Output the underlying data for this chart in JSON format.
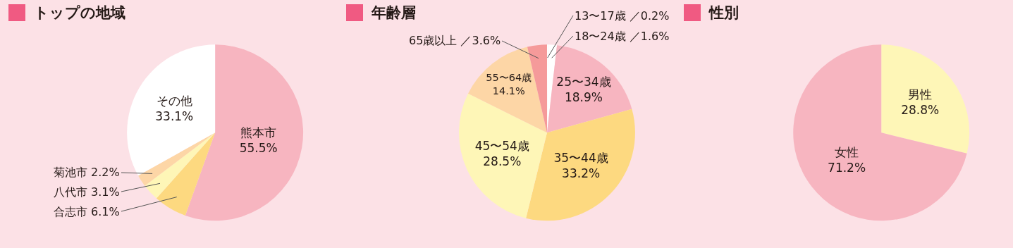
{
  "chart_data": [
    {
      "type": "pie",
      "title": "トップの地域",
      "categories": [
        "熊本市",
        "合志市",
        "八代市",
        "菊池市",
        "その他"
      ],
      "values": [
        55.5,
        6.1,
        3.1,
        2.2,
        33.1
      ],
      "value_labels": [
        "55.5%",
        "6.1%",
        "3.1%",
        "2.2%",
        "33.1%"
      ],
      "colors": [
        "#f7b5c0",
        "#fdd980",
        "#fef6b7",
        "#fdd6a6",
        "#ffffff"
      ],
      "legend": false
    },
    {
      "type": "pie",
      "title": "年齢層",
      "categories": [
        "13〜17歳",
        "18〜24歳",
        "25〜34歳",
        "35〜44歳",
        "45〜54歳",
        "55〜64歳",
        "65歳以上"
      ],
      "values": [
        0.2,
        1.6,
        18.9,
        33.2,
        28.5,
        14.1,
        3.6
      ],
      "value_labels": [
        "／0.2%",
        "／1.6%",
        "18.9%",
        "33.2%",
        "28.5%",
        "14.1%",
        "／3.6%"
      ],
      "colors": [
        "#ffffff",
        "#ffffff",
        "#f7b5c0",
        "#fdd980",
        "#fef6b7",
        "#fdd6a6",
        "#f59a9a"
      ],
      "legend": false
    },
    {
      "type": "pie",
      "title": "性別",
      "categories": [
        "男性",
        "女性"
      ],
      "values": [
        28.8,
        71.2
      ],
      "value_labels": [
        "28.8%",
        "71.2%"
      ],
      "colors": [
        "#fef6b7",
        "#f7b5c0"
      ],
      "legend": false
    }
  ]
}
